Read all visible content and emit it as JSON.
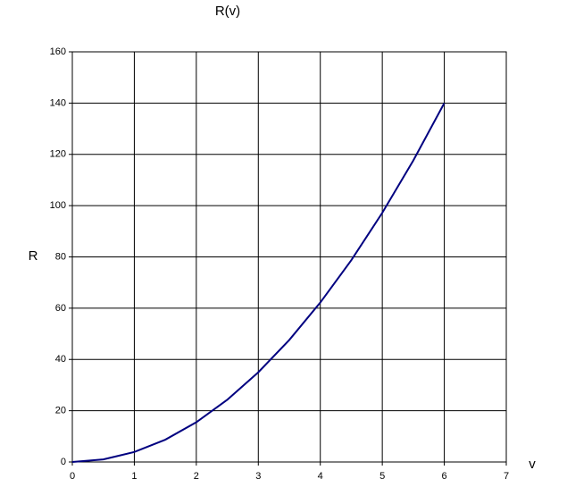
{
  "chart_data": {
    "type": "line",
    "title": "R(v)",
    "x_label": "v",
    "y_label": "R",
    "x": [
      0,
      0.5,
      1,
      1.5,
      2,
      2.5,
      3,
      3.5,
      4,
      4.5,
      5,
      5.5,
      6
    ],
    "series": [
      {
        "name": "R",
        "color": "#000080",
        "values": [
          0,
          1,
          3.9,
          8.7,
          15.5,
          24.3,
          35,
          47.6,
          62.2,
          78.7,
          97.2,
          117.6,
          140
        ]
      }
    ],
    "xlim": [
      0,
      7
    ],
    "xticks": [
      0,
      1,
      2,
      3,
      4,
      5,
      6,
      7
    ],
    "ylim": [
      0,
      160
    ],
    "yticks": [
      0,
      20,
      40,
      60,
      80,
      100,
      120,
      140,
      160
    ],
    "grid": true
  }
}
